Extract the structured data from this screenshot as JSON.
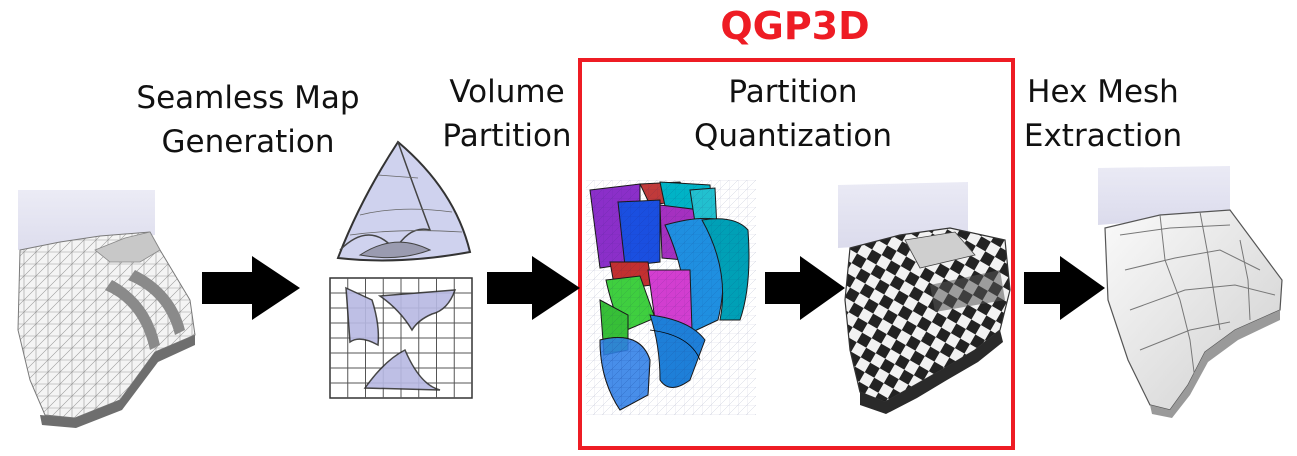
{
  "highlight": {
    "title": "QGP3D",
    "color": "#ee1c24"
  },
  "stages": [
    {
      "lines": [
        "Seamless Map",
        "Generation"
      ]
    },
    {
      "lines": [
        "Volume",
        "Partition"
      ]
    },
    {
      "lines": [
        "Partition",
        "Quantization"
      ]
    },
    {
      "lines": [
        "Hex Mesh",
        "Extraction"
      ]
    }
  ]
}
